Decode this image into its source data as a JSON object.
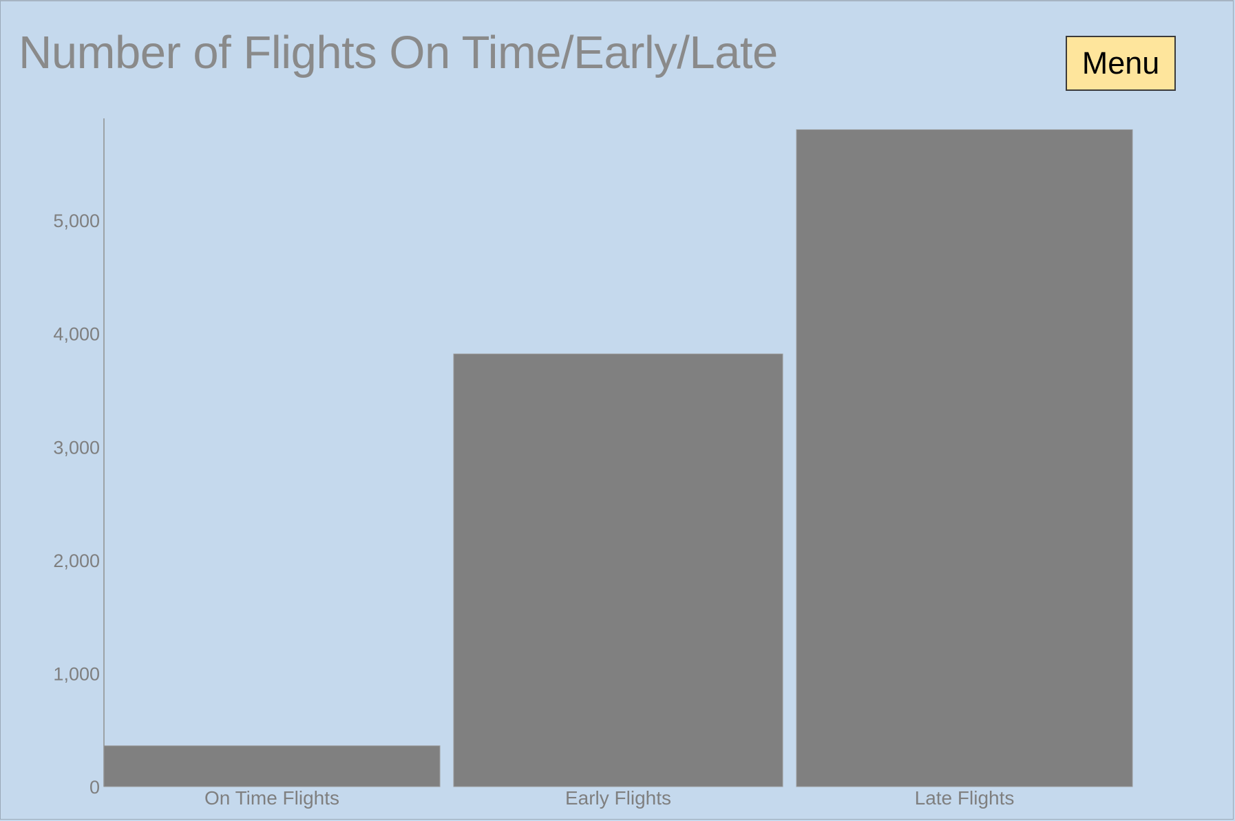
{
  "header": {
    "title": "Number of Flights On Time/Early/Late",
    "menu_label": "Menu"
  },
  "colors": {
    "background": "#c5d9ed",
    "bar": "#808080",
    "menu_button": "#fee59c",
    "text": "#7f7f7f"
  },
  "chart_data": {
    "type": "bar",
    "title": "Number of Flights On Time/Early/Late",
    "xlabel": "",
    "ylabel": "",
    "categories": [
      "On Time Flights",
      "Early Flights",
      "Late Flights"
    ],
    "values": [
      360,
      3820,
      5800
    ],
    "ylim": [
      0,
      5900
    ],
    "yticks": [
      0,
      1000,
      2000,
      3000,
      4000,
      5000
    ],
    "ytick_labels": [
      "0",
      "1,000",
      "2,000",
      "3,000",
      "4,000",
      "5,000"
    ],
    "grid": false,
    "legend": "none"
  }
}
